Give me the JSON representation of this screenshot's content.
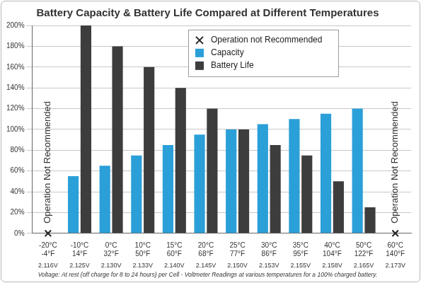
{
  "chart_data": {
    "type": "bar",
    "title": "Battery Capacity & Battery Life Compared at Different Temperatures",
    "footnote": "Voltage: At rest (off charge for 8 to 24 hours) per Cell - Voltmeter Readings at various temperatures for a 100% charged battery.",
    "categories": [
      [
        "-20°C",
        "-4°F"
      ],
      [
        "-10°C",
        "14°F"
      ],
      [
        "0°C",
        "32°F"
      ],
      [
        "10°C",
        "50°F"
      ],
      [
        "15°C",
        "60°F"
      ],
      [
        "20°C",
        "68°F"
      ],
      [
        "25°C",
        "77°F"
      ],
      [
        "30°C",
        "86°F"
      ],
      [
        "35°C",
        "95°F"
      ],
      [
        "40°C",
        "104°F"
      ],
      [
        "50°C",
        "122°F"
      ],
      [
        "60°C",
        "140°F"
      ]
    ],
    "voltages": [
      "2.116V",
      "2.125V",
      "2.130V",
      "2.133V",
      "2.140V",
      "2.145V",
      "2.150V",
      "2.153V",
      "2.155V",
      "2.158V",
      "2.165V",
      "2.173V"
    ],
    "annotations": [
      "Operation Not Recommended",
      null,
      null,
      null,
      null,
      null,
      null,
      null,
      null,
      null,
      null,
      "Operation Not Recommended"
    ],
    "series": [
      {
        "name": "Operation not Recommended",
        "type": "scatter",
        "marker": "x",
        "color": "#222222",
        "values": [
          0,
          null,
          null,
          null,
          null,
          null,
          null,
          null,
          null,
          null,
          null,
          0
        ]
      },
      {
        "name": "Capacity",
        "color": "#2b9fd8",
        "values": [
          null,
          55,
          65,
          75,
          85,
          95,
          100,
          105,
          110,
          115,
          120,
          null
        ]
      },
      {
        "name": "Battery Life",
        "color": "#3d3d3d",
        "values": [
          null,
          200,
          180,
          160,
          140,
          120,
          100,
          85,
          75,
          50,
          25,
          null
        ]
      }
    ],
    "ylim": [
      0,
      200
    ],
    "yticks": [
      {
        "value": 0,
        "label": "0%"
      },
      {
        "value": 20,
        "label": "20%"
      },
      {
        "value": 40,
        "label": "40%"
      },
      {
        "value": 60,
        "label": "60%"
      },
      {
        "value": 80,
        "label": "80%"
      },
      {
        "value": 100,
        "label": "100%"
      },
      {
        "value": 120,
        "label": "120%"
      },
      {
        "value": 140,
        "label": "140%"
      },
      {
        "value": 160,
        "label": "160%"
      },
      {
        "value": 180,
        "label": "180%"
      },
      {
        "value": 200,
        "label": "200%"
      }
    ],
    "grid": "y",
    "legend": "top"
  }
}
